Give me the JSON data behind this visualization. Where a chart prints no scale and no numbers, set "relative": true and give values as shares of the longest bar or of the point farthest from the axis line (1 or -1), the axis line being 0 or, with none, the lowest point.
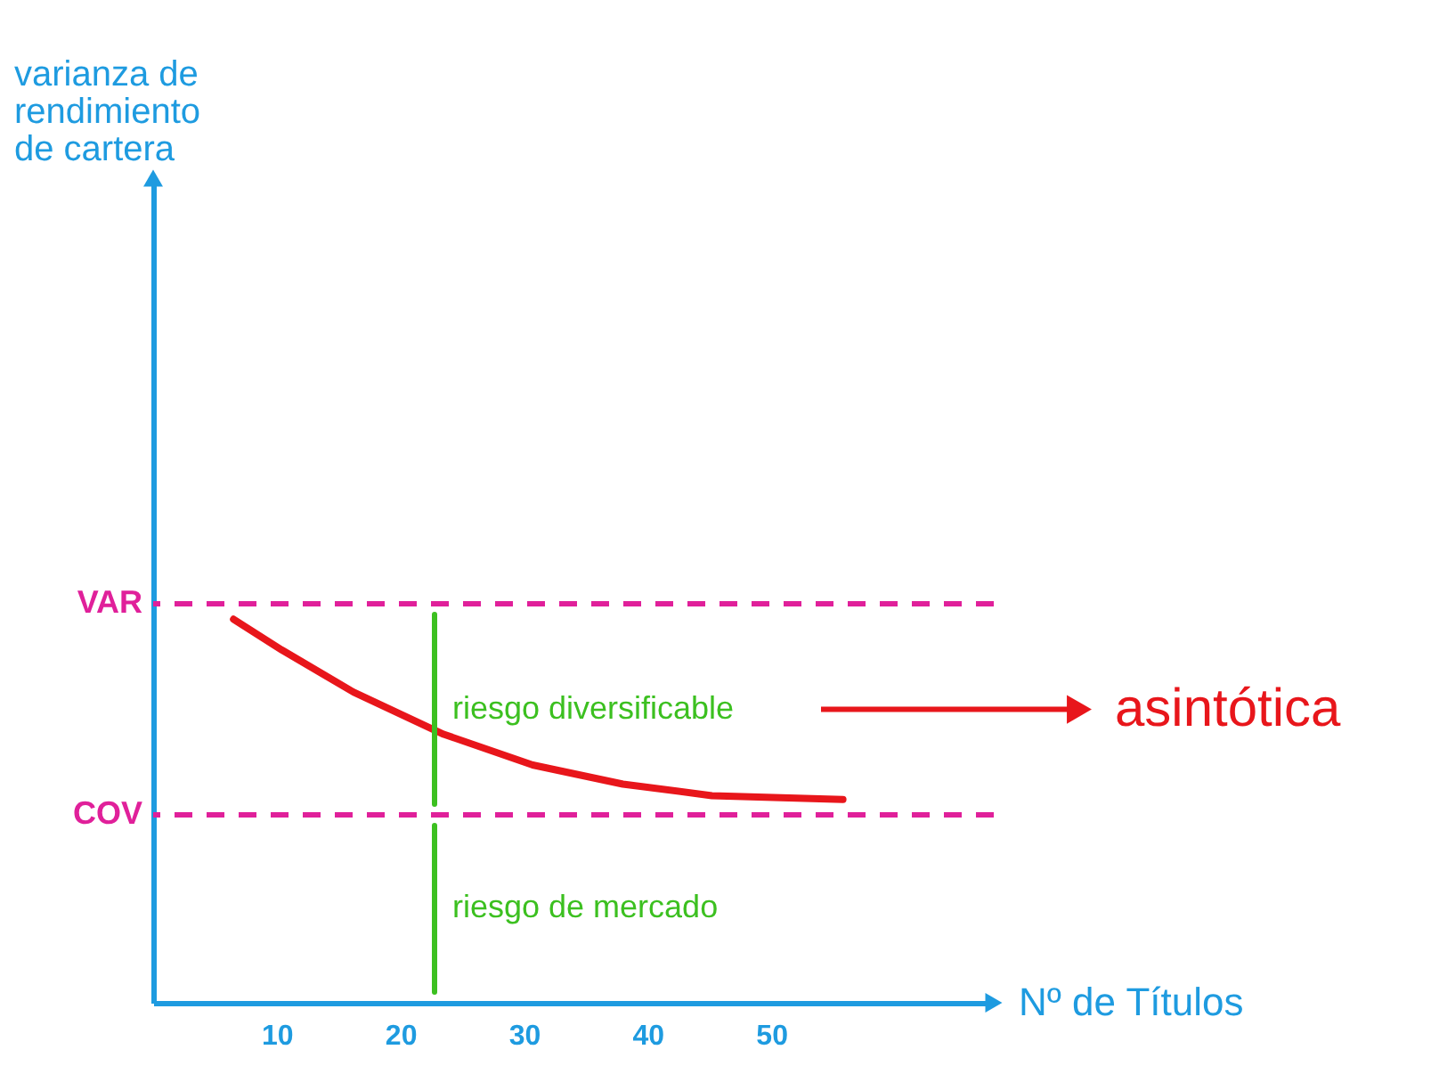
{
  "chart_data": {
    "type": "line",
    "xlabel": "Nº de Títulos",
    "relative": true,
    "xlim": [
      0,
      68
    ],
    "xticks": [
      10,
      20,
      30,
      40,
      50
    ],
    "grid": false,
    "marker": "none",
    "line_style": "solid",
    "series": [
      {
        "color": "#e8161b",
        "x": [
          6.5,
          10.4,
          16.2,
          23.5,
          30.7,
          38,
          45.2,
          55.8
        ],
        "values": [
          1,
          0.92,
          0.81,
          0.7,
          0.62,
          0.57,
          0.54,
          0.53
        ]
      }
    ],
    "ref_lines": [
      {
        "axis": "y",
        "value": 1.04,
        "label": "VAR",
        "color": "#e0209a",
        "line_style": "dashed"
      },
      {
        "axis": "y",
        "value": 0.49,
        "label": "COV",
        "color": "#e0209a",
        "line_style": "dashed"
      }
    ],
    "annotations": [
      "varianza de rendimiento de cartera",
      "riesgo diversificable",
      "riesgo de mercado",
      "asintótica"
    ]
  }
}
